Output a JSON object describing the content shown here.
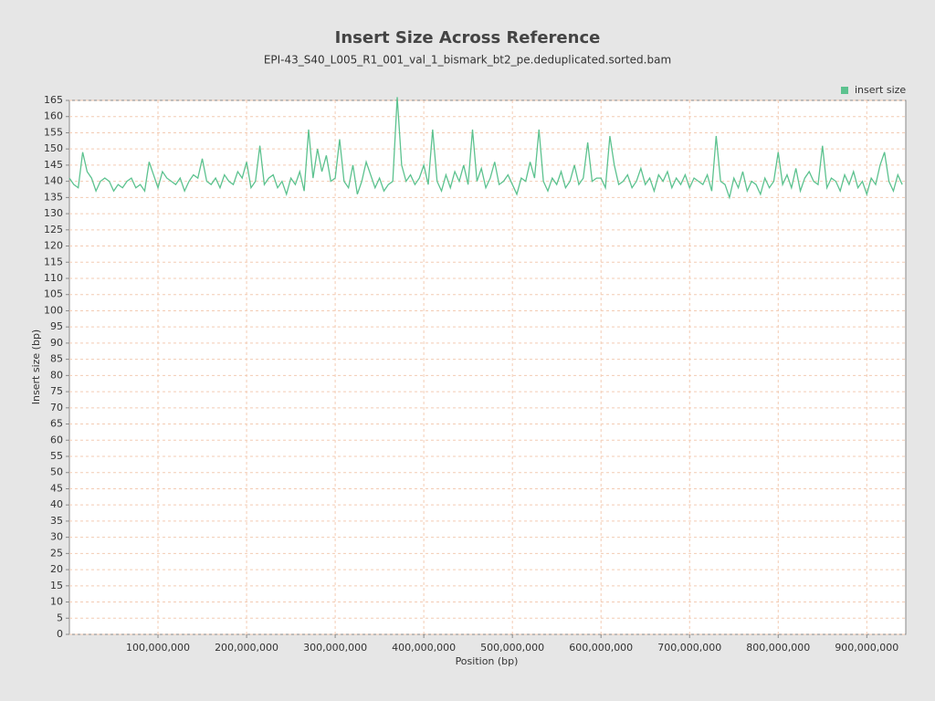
{
  "chart_data": {
    "type": "line",
    "title": "Insert Size Across Reference",
    "subtitle": "EPI-43_S40_L005_R1_001_val_1_bismark_bt2_pe.deduplicated.sorted.bam",
    "x_label": "Position (bp)",
    "y_label": "Insert size (bp)",
    "legend": "top-right",
    "grid": true,
    "xlim": [
      0,
      944000000
    ],
    "ylim": [
      0,
      165
    ],
    "xticks": [
      {
        "value": 100000000,
        "label": "100,000,000"
      },
      {
        "value": 200000000,
        "label": "200,000,000"
      },
      {
        "value": 300000000,
        "label": "300,000,000"
      },
      {
        "value": 400000000,
        "label": "400,000,000"
      },
      {
        "value": 500000000,
        "label": "500,000,000"
      },
      {
        "value": 600000000,
        "label": "600,000,000"
      },
      {
        "value": 700000000,
        "label": "700,000,000"
      },
      {
        "value": 800000000,
        "label": "800,000,000"
      },
      {
        "value": 900000000,
        "label": "900,000,000"
      }
    ],
    "yticks": [
      0,
      5,
      10,
      15,
      20,
      25,
      30,
      35,
      40,
      45,
      50,
      55,
      60,
      65,
      70,
      75,
      80,
      85,
      90,
      95,
      100,
      105,
      110,
      115,
      120,
      125,
      130,
      135,
      140,
      145,
      150,
      155,
      160,
      165
    ],
    "x": [
      0,
      5000000,
      10000000,
      15000000,
      20000000,
      25000000,
      30000000,
      35000000,
      40000000,
      45000000,
      50000000,
      55000000,
      60000000,
      65000000,
      70000000,
      75000000,
      80000000,
      85000000,
      90000000,
      95000000,
      100000000,
      105000000,
      110000000,
      115000000,
      120000000,
      125000000,
      130000000,
      135000000,
      140000000,
      145000000,
      150000000,
      155000000,
      160000000,
      165000000,
      170000000,
      175000000,
      180000000,
      185000000,
      190000000,
      195000000,
      200000000,
      205000000,
      210000000,
      215000000,
      220000000,
      225000000,
      230000000,
      235000000,
      240000000,
      245000000,
      250000000,
      255000000,
      260000000,
      265000000,
      270000000,
      275000000,
      280000000,
      285000000,
      290000000,
      295000000,
      300000000,
      305000000,
      310000000,
      315000000,
      320000000,
      325000000,
      330000000,
      335000000,
      340000000,
      345000000,
      350000000,
      355000000,
      360000000,
      365000000,
      370000000,
      375000000,
      380000000,
      385000000,
      390000000,
      395000000,
      400000000,
      405000000,
      410000000,
      415000000,
      420000000,
      425000000,
      430000000,
      435000000,
      440000000,
      445000000,
      450000000,
      455000000,
      460000000,
      465000000,
      470000000,
      475000000,
      480000000,
      485000000,
      490000000,
      495000000,
      500000000,
      505000000,
      510000000,
      515000000,
      520000000,
      525000000,
      530000000,
      535000000,
      540000000,
      545000000,
      550000000,
      555000000,
      560000000,
      565000000,
      570000000,
      575000000,
      580000000,
      585000000,
      590000000,
      595000000,
      600000000,
      605000000,
      610000000,
      615000000,
      620000000,
      625000000,
      630000000,
      635000000,
      640000000,
      645000000,
      650000000,
      655000000,
      660000000,
      665000000,
      670000000,
      675000000,
      680000000,
      685000000,
      690000000,
      695000000,
      700000000,
      705000000,
      710000000,
      715000000,
      720000000,
      725000000,
      730000000,
      735000000,
      740000000,
      745000000,
      750000000,
      755000000,
      760000000,
      765000000,
      770000000,
      775000000,
      780000000,
      785000000,
      790000000,
      795000000,
      800000000,
      805000000,
      810000000,
      815000000,
      820000000,
      825000000,
      830000000,
      835000000,
      840000000,
      845000000,
      850000000,
      855000000,
      860000000,
      865000000,
      870000000,
      875000000,
      880000000,
      885000000,
      890000000,
      895000000,
      900000000,
      905000000,
      910000000,
      915000000,
      920000000,
      925000000,
      930000000,
      935000000,
      940000000
    ],
    "series": [
      {
        "name": "insert size",
        "color": "#5cc28f",
        "values": [
          141,
          139,
          138,
          149,
          143,
          141,
          137,
          140,
          141,
          140,
          137,
          139,
          138,
          140,
          141,
          138,
          139,
          137,
          146,
          142,
          138,
          143,
          141,
          140,
          139,
          141,
          137,
          140,
          142,
          141,
          147,
          140,
          139,
          141,
          138,
          142,
          140,
          139,
          143,
          141,
          146,
          138,
          140,
          151,
          139,
          141,
          142,
          138,
          140,
          136,
          141,
          139,
          143,
          137,
          156,
          141,
          150,
          143,
          148,
          140,
          141,
          153,
          140,
          138,
          145,
          136,
          140,
          146,
          142,
          138,
          141,
          137,
          139,
          140,
          166,
          145,
          140,
          142,
          139,
          141,
          145,
          139,
          156,
          140,
          137,
          142,
          138,
          143,
          140,
          145,
          139,
          156,
          140,
          144,
          138,
          141,
          146,
          139,
          140,
          142,
          139,
          136,
          141,
          140,
          146,
          141,
          156,
          140,
          137,
          141,
          139,
          143,
          138,
          140,
          145,
          139,
          141,
          152,
          140,
          141,
          141,
          138,
          154,
          145,
          139,
          140,
          142,
          138,
          140,
          144,
          139,
          141,
          137,
          142,
          140,
          143,
          138,
          141,
          139,
          142,
          138,
          141,
          140,
          139,
          142,
          137,
          154,
          140,
          139,
          135,
          141,
          138,
          143,
          137,
          140,
          139,
          136,
          141,
          138,
          140,
          149,
          139,
          142,
          138,
          144,
          137,
          141,
          143,
          140,
          139,
          151,
          138,
          141,
          140,
          137,
          142,
          139,
          143,
          138,
          140,
          136,
          141,
          139,
          145,
          149,
          140,
          137,
          142,
          139
        ]
      }
    ]
  }
}
